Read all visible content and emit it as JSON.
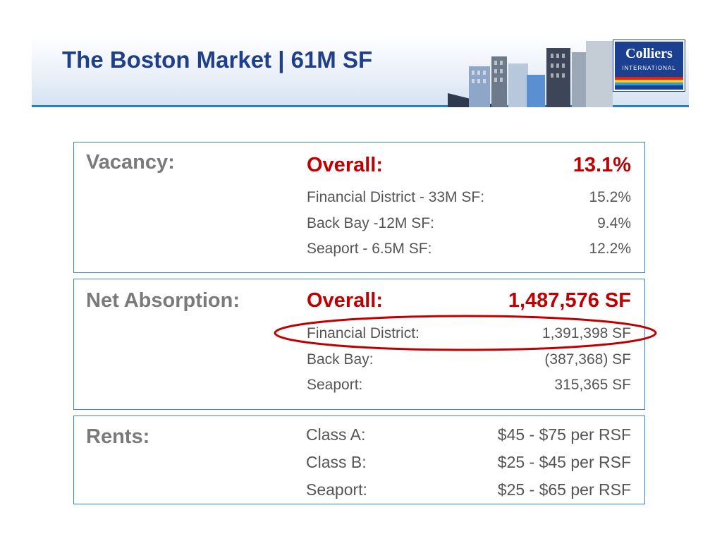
{
  "header": {
    "title": "The Boston Market | 61M SF"
  },
  "logo": {
    "name": "Colliers",
    "subtitle": "INTERNATIONAL",
    "colors": [
      "#e2231a",
      "#f7c81e",
      "#2a9fd8",
      "#1b3f91"
    ]
  },
  "colors": {
    "title": "#1f3f8a",
    "accent_red": "#c00000",
    "label_gray": "#7a7a7a",
    "text_gray": "#555555",
    "border_blue": "#3b86c8",
    "highlight_ellipse": "#c00000"
  },
  "vacancy": {
    "label": "Vacancy:",
    "overall_label": "Overall:",
    "overall_value": "13.1%",
    "rows": [
      {
        "name": "Financial District - 33M SF:",
        "value": "15.2%"
      },
      {
        "name": "Back Bay -12M SF:",
        "value": "9.4%"
      },
      {
        "name": "Seaport - 6.5M SF:",
        "value": "12.2%"
      }
    ]
  },
  "absorption": {
    "label": "Net Absorption:",
    "overall_label": "Overall:",
    "overall_value": "1,487,576 SF",
    "rows": [
      {
        "name": "Financial District:",
        "value": "1,391,398 SF"
      },
      {
        "name": "Back Bay:",
        "value": "(387,368) SF"
      },
      {
        "name": "Seaport:",
        "value": "315,365 SF"
      }
    ]
  },
  "rents": {
    "label": "Rents:",
    "rows": [
      {
        "name": "Class A:",
        "value": "$45 - $75 per RSF"
      },
      {
        "name": "Class B:",
        "value": "$25 - $45 per RSF"
      },
      {
        "name": "Seaport:",
        "value": "$25 - $65 per RSF"
      }
    ]
  }
}
